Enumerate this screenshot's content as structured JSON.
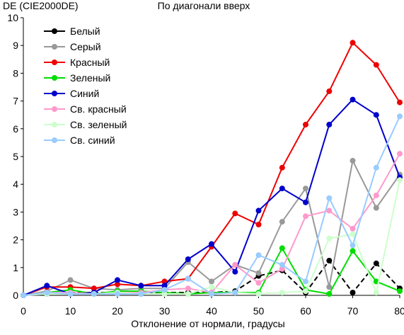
{
  "chart_data": {
    "type": "line",
    "title": "По диагонали вверх",
    "ylabel": "DE (CIE2000DE)",
    "xlabel": "Отклонение от нормали, градусы",
    "xlim": [
      0,
      80
    ],
    "ylim": [
      0,
      10
    ],
    "xticks": [
      0,
      10,
      20,
      30,
      40,
      50,
      60,
      70,
      80
    ],
    "yticks": [
      0,
      1,
      2,
      3,
      4,
      5,
      6,
      7,
      8,
      9,
      10
    ],
    "grid": false,
    "legend_position": "top-left",
    "x": [
      0,
      5,
      10,
      15,
      20,
      25,
      30,
      35,
      40,
      45,
      50,
      55,
      60,
      65,
      70,
      75,
      80
    ],
    "series": [
      {
        "name": "Белый",
        "color": "#000000",
        "values": [
          0,
          0.05,
          0.1,
          0.1,
          0.1,
          0.05,
          0.1,
          0.1,
          0.1,
          0.15,
          0.7,
          0.9,
          0.1,
          1.25,
          0.1,
          1.15,
          0.25
        ]
      },
      {
        "name": "Серый",
        "color": "#999999",
        "values": [
          0,
          0.15,
          0.55,
          0.25,
          0.2,
          0.25,
          0.25,
          1.2,
          0.5,
          1.1,
          0.8,
          2.65,
          3.85,
          0.3,
          4.85,
          3.15,
          4.35
        ]
      },
      {
        "name": "Красный",
        "color": "#ee0000",
        "values": [
          0,
          0.3,
          0.3,
          0.25,
          0.4,
          0.35,
          0.5,
          0.6,
          1.75,
          2.95,
          2.55,
          4.6,
          6.15,
          7.35,
          9.1,
          8.3,
          6.95
        ]
      },
      {
        "name": "Зеленый",
        "color": "#00dd00",
        "values": [
          0,
          0.1,
          0.2,
          0.05,
          0.15,
          0.15,
          0.1,
          0.05,
          0.1,
          0.1,
          0.1,
          1.7,
          0.2,
          0.05,
          1.6,
          0.5,
          0.15
        ]
      },
      {
        "name": "Синий",
        "color": "#0000cc",
        "values": [
          0,
          0.35,
          0.05,
          0.1,
          0.55,
          0.35,
          0.35,
          1.3,
          1.85,
          0.85,
          3.05,
          3.85,
          3.35,
          6.15,
          7.05,
          6.5,
          4.25
        ]
      },
      {
        "name": "Св. красный",
        "color": "#ff99cc",
        "values": [
          0,
          0.1,
          0.1,
          0.05,
          0.1,
          0.1,
          0.2,
          0.25,
          0.1,
          1.1,
          0.45,
          0.95,
          2.85,
          3.05,
          2.4,
          3.6,
          5.1
        ]
      },
      {
        "name": "Св. зеленый",
        "color": "#ccffcc",
        "values": [
          0,
          0.05,
          0.05,
          0.05,
          0.1,
          0.05,
          0.05,
          0.05,
          0.3,
          0.1,
          0.05,
          0.1,
          0.15,
          2.05,
          2.2,
          0.1,
          4.15
        ]
      },
      {
        "name": "Св. синий",
        "color": "#99ccff",
        "values": [
          0,
          0.1,
          0.05,
          0.05,
          0.05,
          0.05,
          0.2,
          0.6,
          0.05,
          0.1,
          1.45,
          1.1,
          0.5,
          3.5,
          1.8,
          4.6,
          6.45
        ]
      }
    ]
  }
}
